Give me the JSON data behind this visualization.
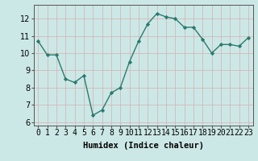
{
  "x": [
    0,
    1,
    2,
    3,
    4,
    5,
    6,
    7,
    8,
    9,
    10,
    11,
    12,
    13,
    14,
    15,
    16,
    17,
    18,
    19,
    20,
    21,
    22,
    23
  ],
  "y": [
    10.7,
    9.9,
    9.9,
    8.5,
    8.3,
    8.7,
    6.4,
    6.7,
    7.7,
    8.0,
    9.5,
    10.7,
    11.7,
    12.3,
    12.1,
    12.0,
    11.5,
    11.5,
    10.8,
    10.0,
    10.5,
    10.5,
    10.4,
    10.9
  ],
  "line_color": "#2a7a6e",
  "marker": "D",
  "marker_size": 2.2,
  "bg_color": "#cce8e6",
  "grid_color": "#b0d4d2",
  "xlabel": "Humidex (Indice chaleur)",
  "ylim": [
    5.8,
    12.8
  ],
  "xlim": [
    -0.5,
    23.5
  ],
  "yticks": [
    6,
    7,
    8,
    9,
    10,
    11,
    12
  ],
  "xticks": [
    0,
    1,
    2,
    3,
    4,
    5,
    6,
    7,
    8,
    9,
    10,
    11,
    12,
    13,
    14,
    15,
    16,
    17,
    18,
    19,
    20,
    21,
    22,
    23
  ],
  "xtick_labels": [
    "0",
    "1",
    "2",
    "3",
    "4",
    "5",
    "6",
    "7",
    "8",
    "9",
    "10",
    "11",
    "12",
    "13",
    "14",
    "15",
    "16",
    "17",
    "18",
    "19",
    "20",
    "21",
    "22",
    "23"
  ],
  "xlabel_fontsize": 7.5,
  "tick_fontsize": 7
}
